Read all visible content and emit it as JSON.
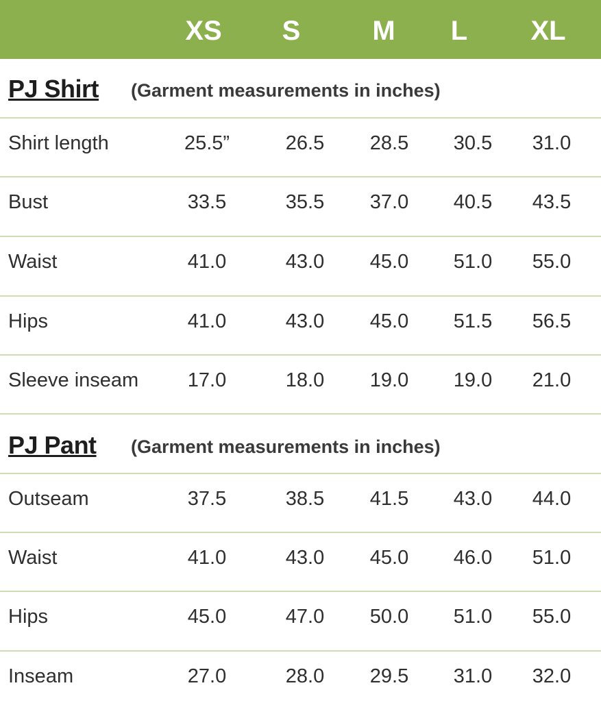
{
  "sizes": [
    "XS",
    "S",
    "M",
    "L",
    "XL"
  ],
  "shirt": {
    "title": "PJ Shirt",
    "note": "(Garment measurements in inches)",
    "rows": [
      {
        "label": "Shirt length",
        "values": [
          "25.5”",
          "26.5",
          "28.5",
          "30.5",
          "31.0"
        ]
      },
      {
        "label": "Bust",
        "values": [
          "33.5",
          "35.5",
          "37.0",
          "40.5",
          "43.5"
        ]
      },
      {
        "label": "Waist",
        "values": [
          "41.0",
          "43.0",
          "45.0",
          "51.0",
          "55.0"
        ]
      },
      {
        "label": "Hips",
        "values": [
          "41.0",
          "43.0",
          "45.0",
          "51.5",
          "56.5"
        ]
      },
      {
        "label": "Sleeve inseam",
        "values": [
          "17.0",
          "18.0",
          "19.0",
          "19.0",
          "21.0"
        ]
      }
    ]
  },
  "pant": {
    "title": "PJ Pant",
    "note": "(Garment measurements in inches)",
    "rows": [
      {
        "label": "Outseam",
        "values": [
          "37.5",
          "38.5",
          "41.5",
          "43.0",
          "44.0"
        ]
      },
      {
        "label": "Waist",
        "values": [
          "41.0",
          "43.0",
          "45.0",
          "46.0",
          "51.0"
        ]
      },
      {
        "label": "Hips",
        "values": [
          "45.0",
          "47.0",
          "50.0",
          "51.0",
          "55.0"
        ]
      },
      {
        "label": "Inseam",
        "values": [
          "27.0",
          "28.0",
          "29.5",
          "31.0",
          "32.0"
        ]
      }
    ]
  },
  "colors": {
    "header": "#8db04f",
    "divider": "#cfdcb4"
  }
}
